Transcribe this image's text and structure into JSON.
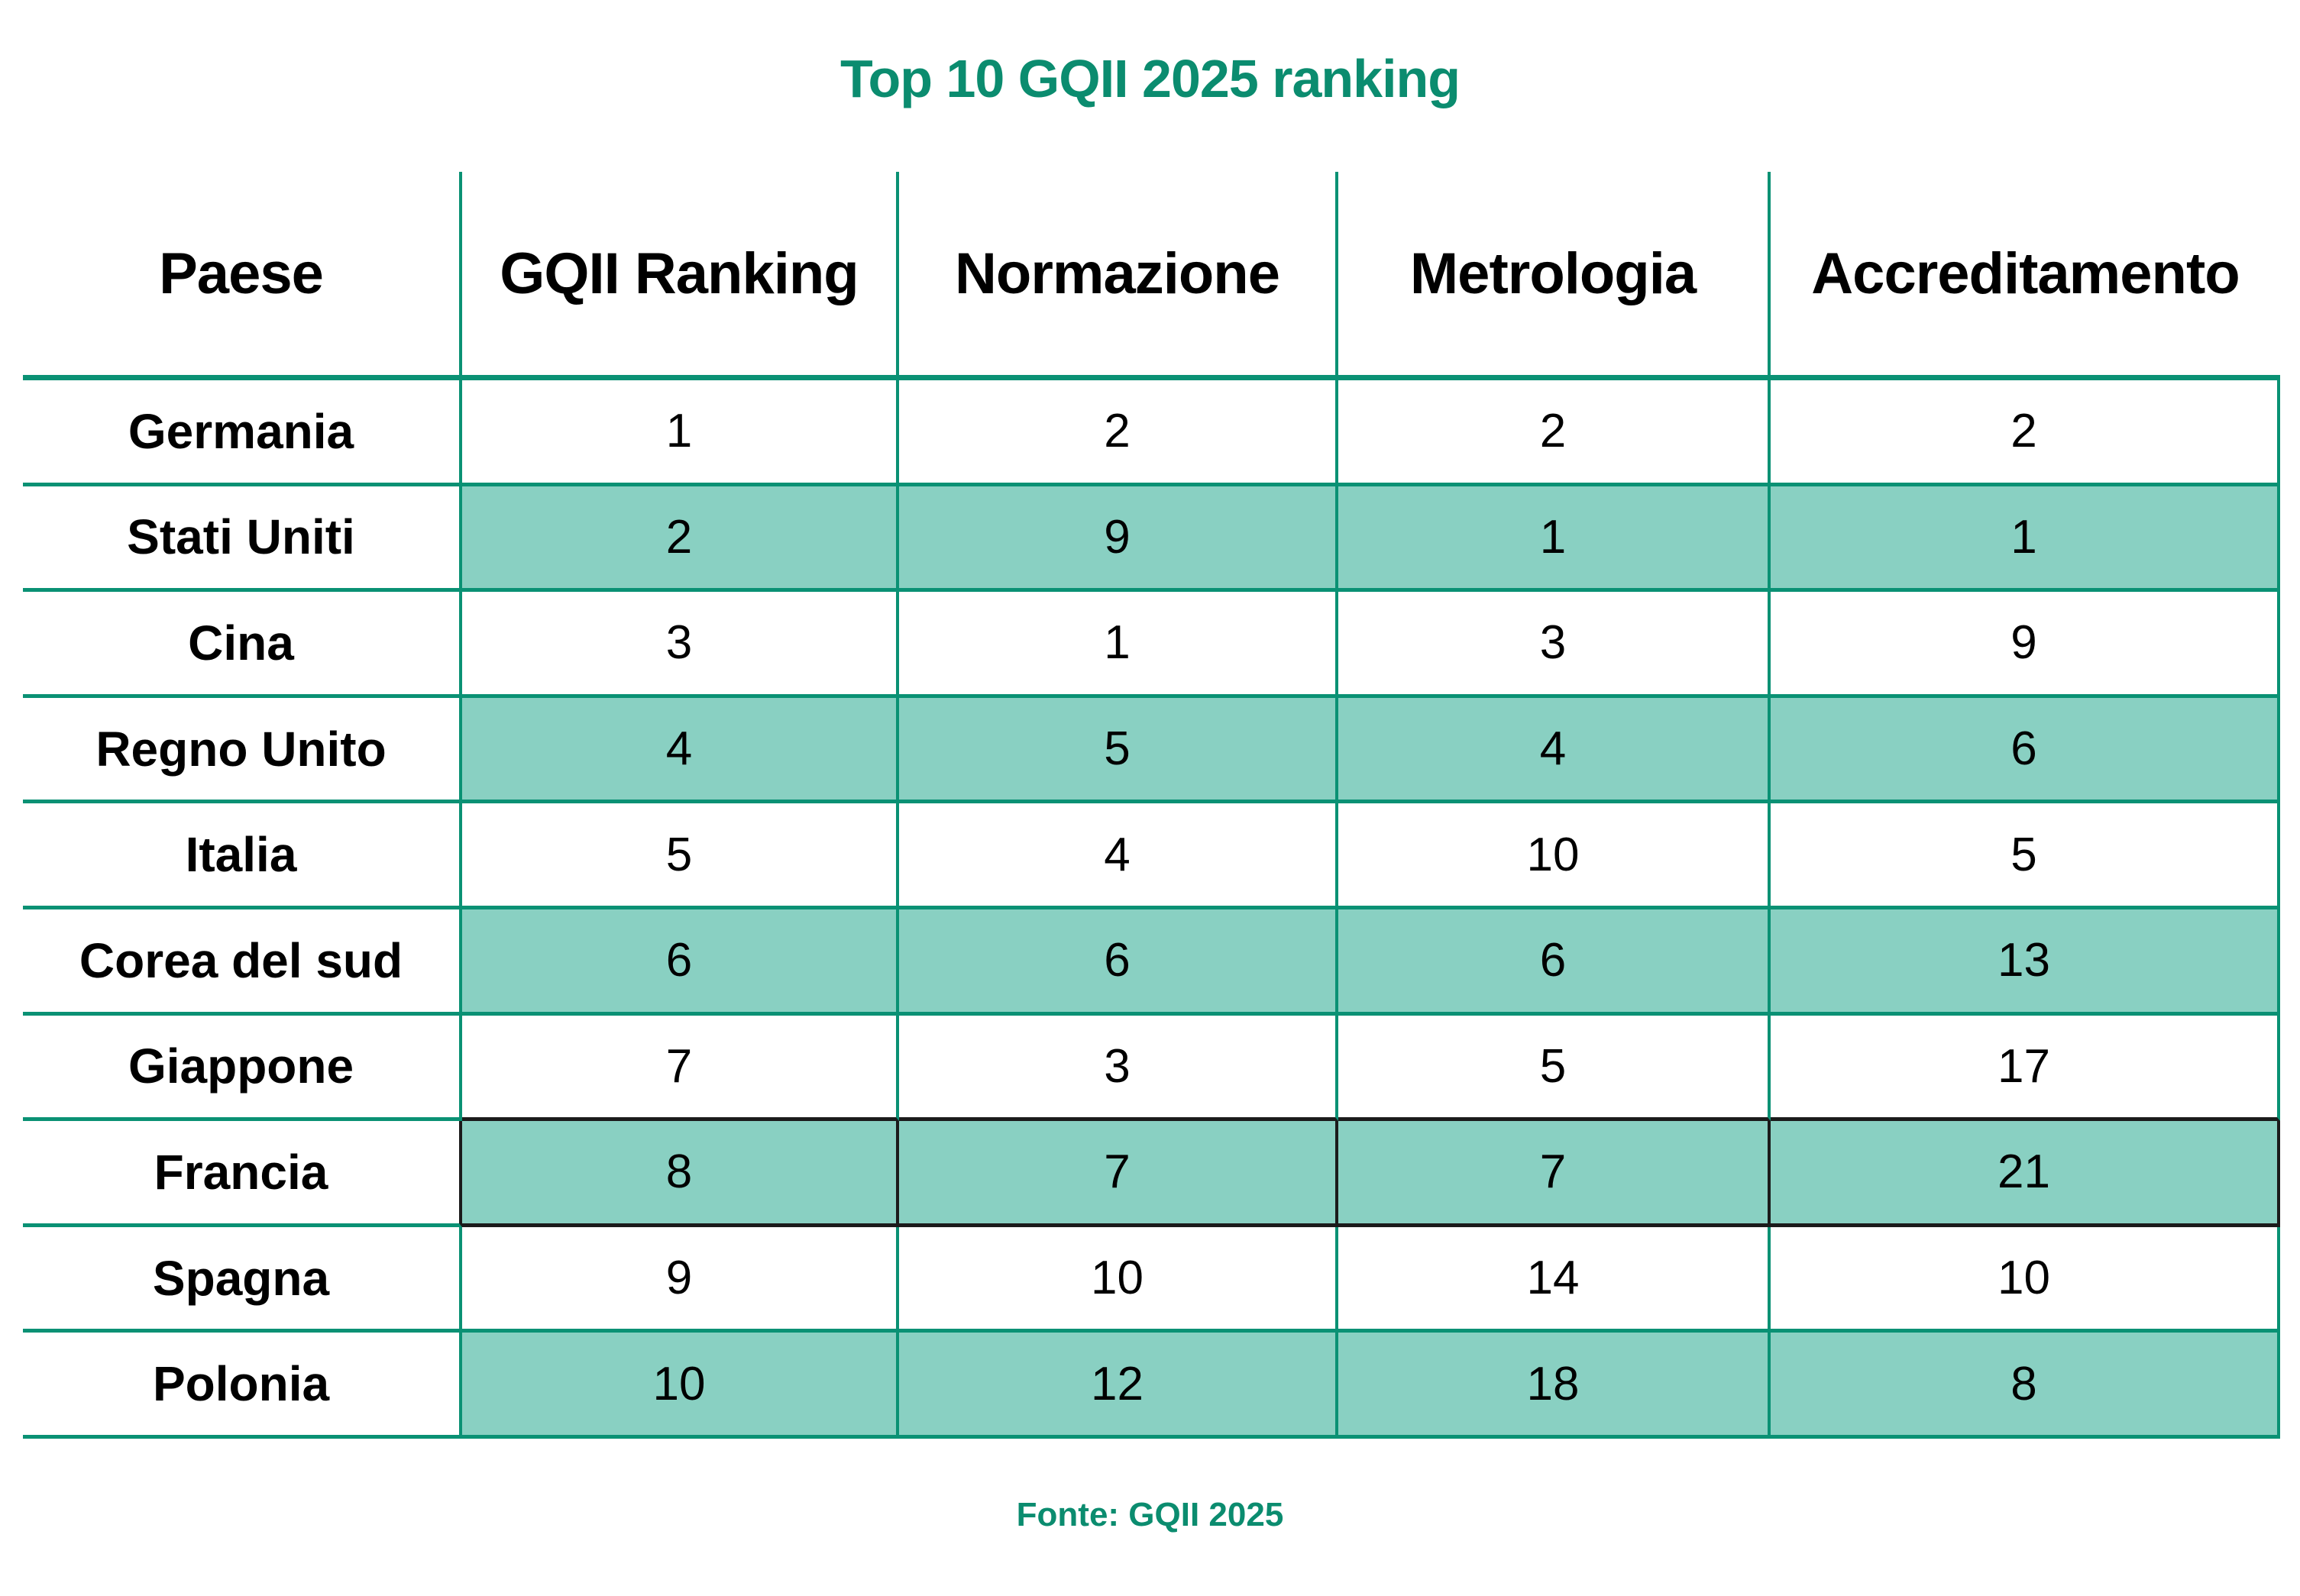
{
  "title": "Top 10 GQII 2025 ranking",
  "footer": {
    "source": "Fonte: GQII 2025"
  },
  "chart_data": {
    "type": "table",
    "title": "Top 10 GQII 2025 ranking",
    "columns": [
      "Paese",
      "GQII Ranking",
      "Normazione",
      "Metrologia",
      "Accreditamento"
    ],
    "rows": [
      {
        "country": "Germania",
        "values": [
          1,
          2,
          2,
          2
        ],
        "shaded": false,
        "highlighted": false
      },
      {
        "country": "Stati Uniti",
        "values": [
          2,
          9,
          1,
          1
        ],
        "shaded": true,
        "highlighted": false
      },
      {
        "country": "Cina",
        "values": [
          3,
          1,
          3,
          9
        ],
        "shaded": false,
        "highlighted": false
      },
      {
        "country": "Regno Unito",
        "values": [
          4,
          5,
          4,
          6
        ],
        "shaded": true,
        "highlighted": false
      },
      {
        "country": "Italia",
        "values": [
          5,
          4,
          10,
          5
        ],
        "shaded": false,
        "highlighted": false
      },
      {
        "country": "Corea del sud",
        "values": [
          6,
          6,
          6,
          13
        ],
        "shaded": true,
        "highlighted": false
      },
      {
        "country": "Giappone",
        "values": [
          7,
          3,
          5,
          17
        ],
        "shaded": false,
        "highlighted": false
      },
      {
        "country": "Francia",
        "values": [
          8,
          7,
          7,
          21
        ],
        "shaded": true,
        "highlighted": true
      },
      {
        "country": "Spagna",
        "values": [
          9,
          10,
          14,
          10
        ],
        "shaded": false,
        "highlighted": false
      },
      {
        "country": "Polonia",
        "values": [
          10,
          12,
          18,
          8
        ],
        "shaded": true,
        "highlighted": false
      }
    ],
    "source": "Fonte: GQII 2025",
    "layout": {
      "grid": "on",
      "shaded_row_scope": "value columns only",
      "highlight_scope": "value columns of highlighted row"
    }
  },
  "colors": {
    "accent_green": "#0b8c6f",
    "grid_green": "#0a9174",
    "row_fill_teal": "#89d0c2",
    "highlight_border": "#1b1b1b",
    "text": "#000000"
  }
}
